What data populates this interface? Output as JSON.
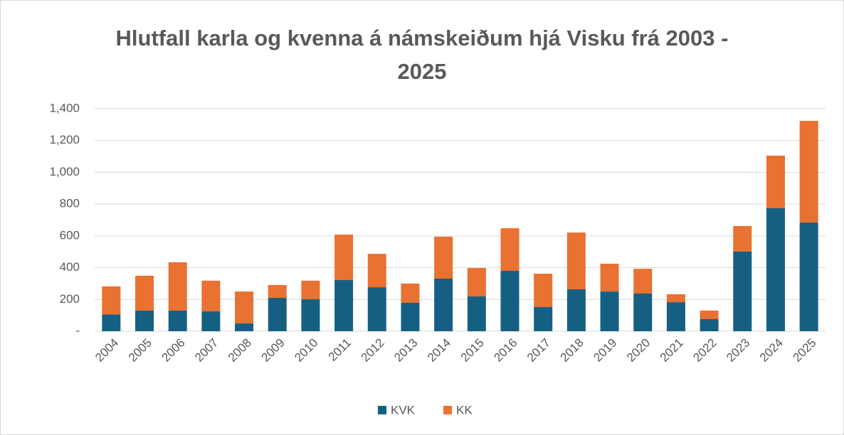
{
  "chart_data": {
    "type": "stacked_bar",
    "title": "Hlutfall karla og kvenna á námskeiðum hjá Visku frá 2003 - 2025",
    "categories": [
      "2004",
      "2005",
      "2006",
      "2007",
      "2008",
      "2009",
      "2010",
      "2011",
      "2012",
      "2013",
      "2014",
      "2015",
      "2016",
      "2017",
      "2018",
      "2019",
      "2020",
      "2021",
      "2022",
      "2023",
      "2024",
      "2025"
    ],
    "series": [
      {
        "name": "KVK",
        "color": "#156082",
        "values": [
          105,
          130,
          130,
          125,
          49,
          210,
          201,
          322,
          277,
          179,
          331,
          219,
          380,
          152,
          264,
          250,
          237,
          183,
          76,
          501,
          774,
          684
        ]
      },
      {
        "name": "KK",
        "color": "#e97132",
        "values": [
          177,
          219,
          304,
          193,
          201,
          81,
          117,
          286,
          210,
          121,
          264,
          179,
          268,
          210,
          357,
          175,
          156,
          50,
          54,
          161,
          331,
          640
        ]
      }
    ],
    "ylim": [
      0,
      1400
    ],
    "yticks": [
      {
        "value": 0,
        "label": "-"
      },
      200,
      400,
      600,
      800,
      {
        "value": 1000,
        "label": "1,000"
      },
      {
        "value": 1200,
        "label": "1,200"
      },
      {
        "value": 1400,
        "label": "1,400"
      }
    ],
    "grid": true,
    "legend": "bottom"
  }
}
